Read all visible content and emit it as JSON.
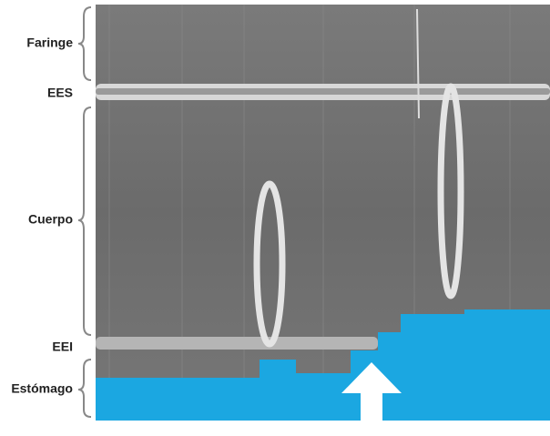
{
  "labels": {
    "faringe": "Faringe",
    "ees": "EES",
    "cuerpo": "Cuerpo",
    "eei": "EEI",
    "estomago": "Estómago"
  }
}
